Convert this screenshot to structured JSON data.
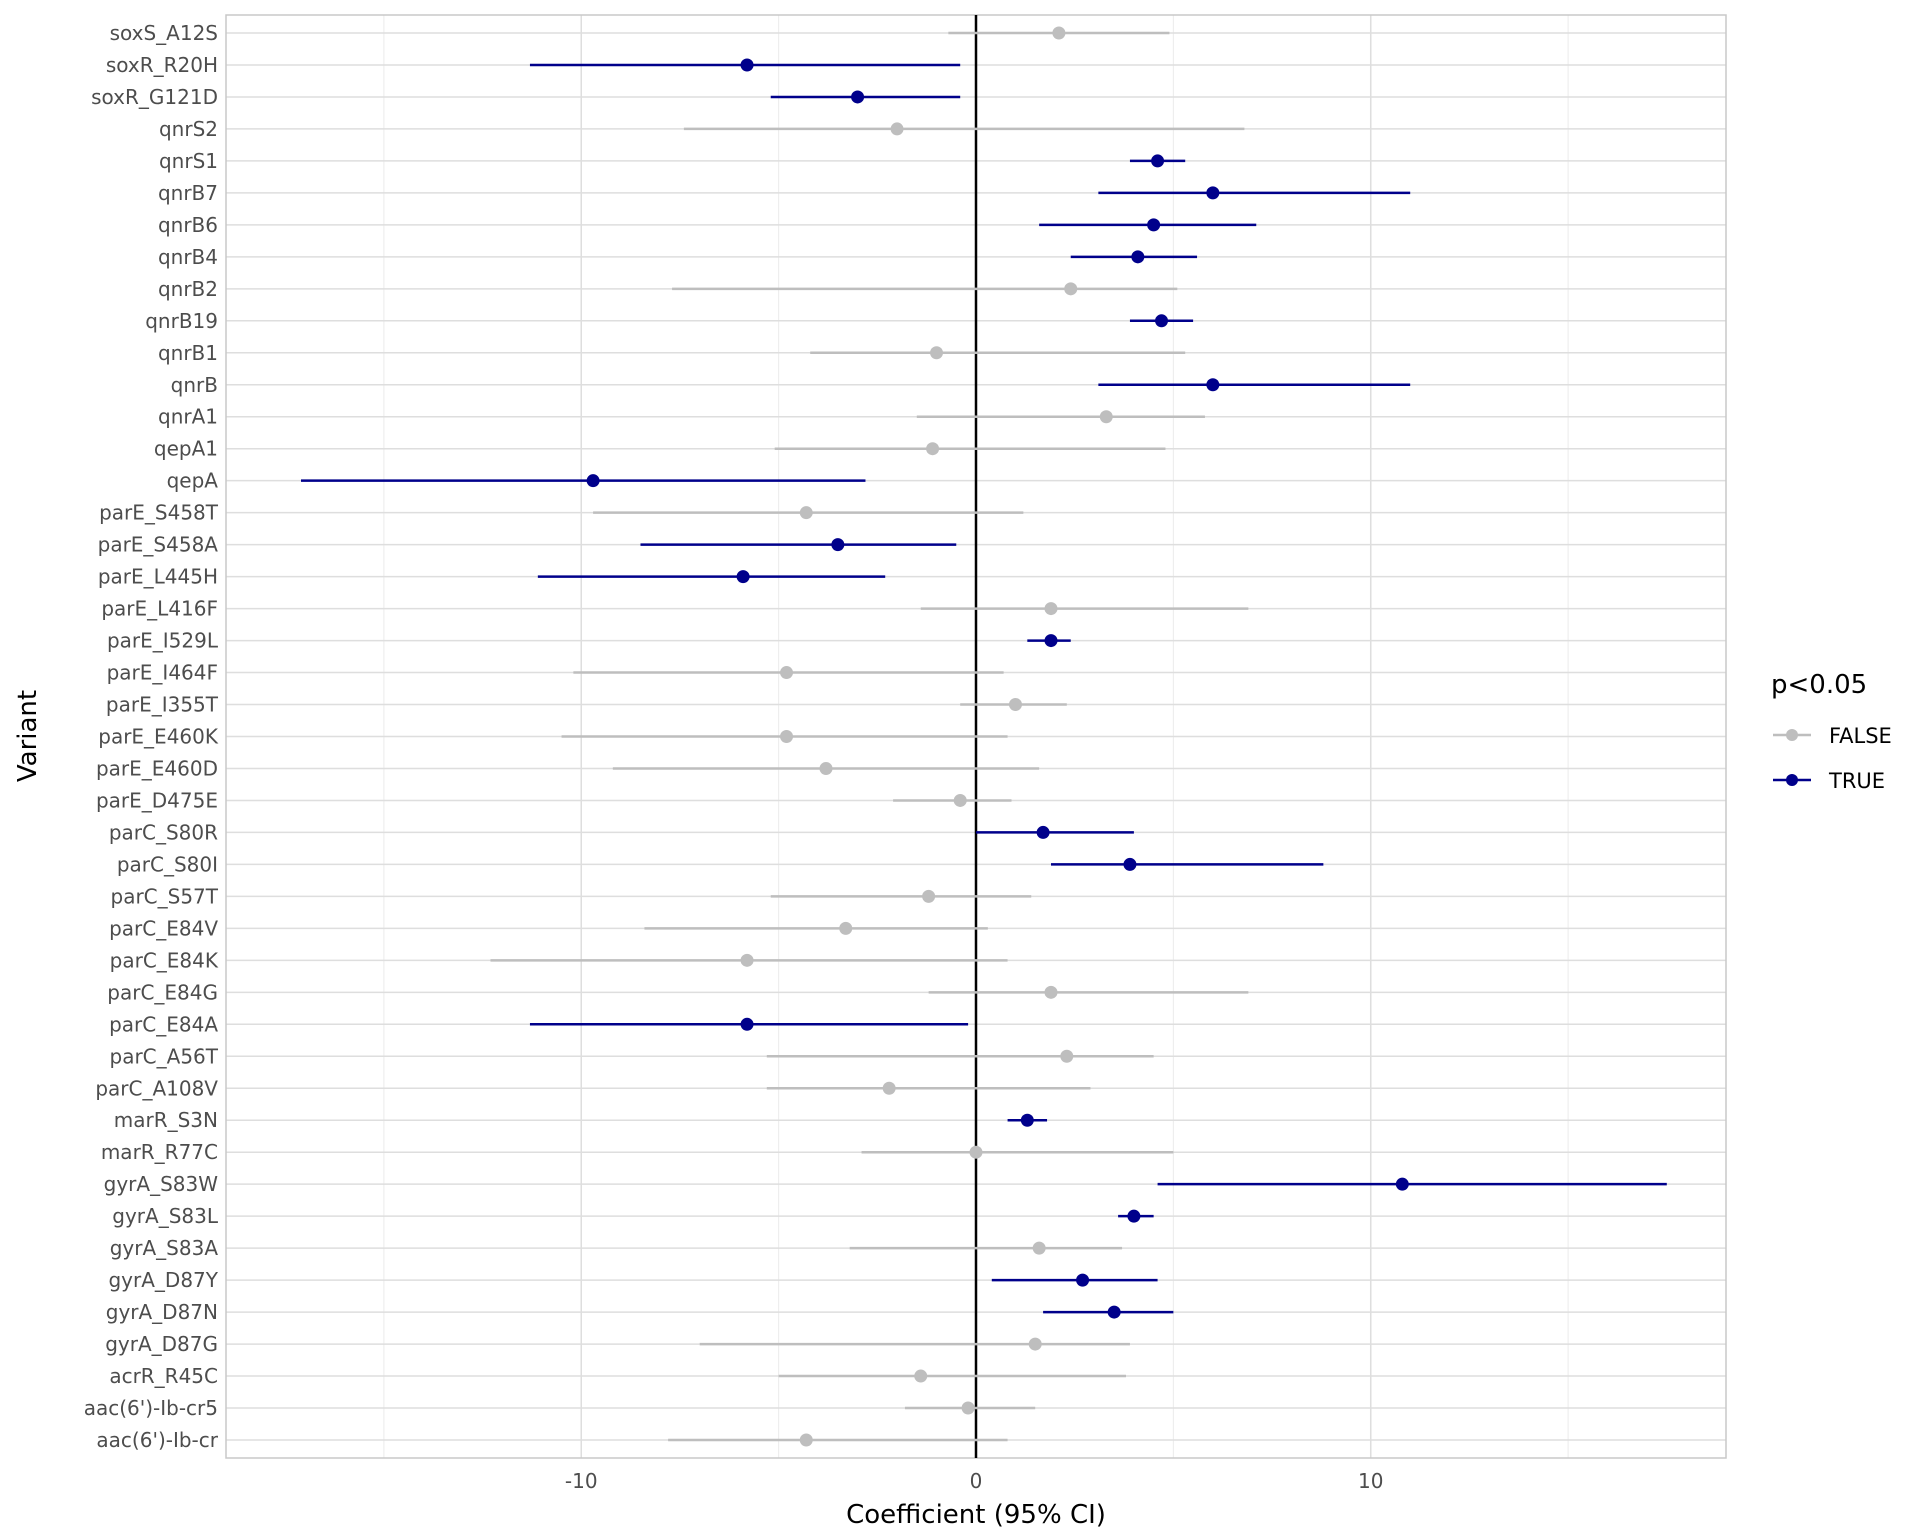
{
  "chart_data": {
    "type": "forest",
    "xlabel": "Coefficient (95% CI)",
    "ylabel": "Variant",
    "xlim": [
      -19,
      19
    ],
    "x_ticks": [
      -10,
      0,
      10
    ],
    "x_tick_labels": [
      "-10",
      "0",
      "10"
    ],
    "reference_line": 0,
    "grid": true,
    "legend": {
      "title": "p<0.05",
      "placement": "right",
      "entries": [
        {
          "label": "FALSE",
          "color": "#bebebe"
        },
        {
          "label": "TRUE",
          "color": "#00008b"
        }
      ]
    },
    "colors": {
      "FALSE": "#bebebe",
      "TRUE": "#00008b"
    },
    "variants": [
      {
        "name": "soxS_A12S",
        "estimate": 2.1,
        "lower": -0.7,
        "upper": 4.9,
        "significant": "FALSE"
      },
      {
        "name": "soxR_R20H",
        "estimate": -5.8,
        "lower": -11.3,
        "upper": -0.4,
        "significant": "TRUE"
      },
      {
        "name": "soxR_G121D",
        "estimate": -3.0,
        "lower": -5.2,
        "upper": -0.4,
        "significant": "TRUE"
      },
      {
        "name": "qnrS2",
        "estimate": -2.0,
        "lower": -7.4,
        "upper": 6.8,
        "significant": "FALSE"
      },
      {
        "name": "qnrS1",
        "estimate": 4.6,
        "lower": 3.9,
        "upper": 5.3,
        "significant": "TRUE"
      },
      {
        "name": "qnrB7",
        "estimate": 6.0,
        "lower": 3.1,
        "upper": 11.0,
        "significant": "TRUE"
      },
      {
        "name": "qnrB6",
        "estimate": 4.5,
        "lower": 1.6,
        "upper": 7.1,
        "significant": "TRUE"
      },
      {
        "name": "qnrB4",
        "estimate": 4.1,
        "lower": 2.4,
        "upper": 5.6,
        "significant": "TRUE"
      },
      {
        "name": "qnrB2",
        "estimate": 2.4,
        "lower": -7.7,
        "upper": 5.1,
        "significant": "FALSE"
      },
      {
        "name": "qnrB19",
        "estimate": 4.7,
        "lower": 3.9,
        "upper": 5.5,
        "significant": "TRUE"
      },
      {
        "name": "qnrB1",
        "estimate": -1.0,
        "lower": -4.2,
        "upper": 5.3,
        "significant": "FALSE"
      },
      {
        "name": "qnrB",
        "estimate": 6.0,
        "lower": 3.1,
        "upper": 11.0,
        "significant": "TRUE"
      },
      {
        "name": "qnrA1",
        "estimate": 3.3,
        "lower": -1.5,
        "upper": 5.8,
        "significant": "FALSE"
      },
      {
        "name": "qepA1",
        "estimate": -1.1,
        "lower": -5.1,
        "upper": 4.8,
        "significant": "FALSE"
      },
      {
        "name": "qepA",
        "estimate": -9.7,
        "lower": -17.1,
        "upper": -2.8,
        "significant": "TRUE"
      },
      {
        "name": "parE_S458T",
        "estimate": -4.3,
        "lower": -9.7,
        "upper": 1.2,
        "significant": "FALSE"
      },
      {
        "name": "parE_S458A",
        "estimate": -3.5,
        "lower": -8.5,
        "upper": -0.5,
        "significant": "TRUE"
      },
      {
        "name": "parE_L445H",
        "estimate": -5.9,
        "lower": -11.1,
        "upper": -2.3,
        "significant": "TRUE"
      },
      {
        "name": "parE_L416F",
        "estimate": 1.9,
        "lower": -1.4,
        "upper": 6.9,
        "significant": "FALSE"
      },
      {
        "name": "parE_I529L",
        "estimate": 1.9,
        "lower": 1.3,
        "upper": 2.4,
        "significant": "TRUE"
      },
      {
        "name": "parE_I464F",
        "estimate": -4.8,
        "lower": -10.2,
        "upper": 0.7,
        "significant": "FALSE"
      },
      {
        "name": "parE_I355T",
        "estimate": 1.0,
        "lower": -0.4,
        "upper": 2.3,
        "significant": "FALSE"
      },
      {
        "name": "parE_E460K",
        "estimate": -4.8,
        "lower": -10.5,
        "upper": 0.8,
        "significant": "FALSE"
      },
      {
        "name": "parE_E460D",
        "estimate": -3.8,
        "lower": -9.2,
        "upper": 1.6,
        "significant": "FALSE"
      },
      {
        "name": "parE_D475E",
        "estimate": -0.4,
        "lower": -2.1,
        "upper": 0.9,
        "significant": "FALSE"
      },
      {
        "name": "parC_S80R",
        "estimate": 1.7,
        "lower": 0.0,
        "upper": 4.0,
        "significant": "TRUE"
      },
      {
        "name": "parC_S80I",
        "estimate": 3.9,
        "lower": 1.9,
        "upper": 8.8,
        "significant": "TRUE"
      },
      {
        "name": "parC_S57T",
        "estimate": -1.2,
        "lower": -5.2,
        "upper": 1.4,
        "significant": "FALSE"
      },
      {
        "name": "parC_E84V",
        "estimate": -3.3,
        "lower": -8.4,
        "upper": 0.3,
        "significant": "FALSE"
      },
      {
        "name": "parC_E84K",
        "estimate": -5.8,
        "lower": -12.3,
        "upper": 0.8,
        "significant": "FALSE"
      },
      {
        "name": "parC_E84G",
        "estimate": 1.9,
        "lower": -1.2,
        "upper": 6.9,
        "significant": "FALSE"
      },
      {
        "name": "parC_E84A",
        "estimate": -5.8,
        "lower": -11.3,
        "upper": -0.2,
        "significant": "TRUE"
      },
      {
        "name": "parC_A56T",
        "estimate": 2.3,
        "lower": -5.3,
        "upper": 4.5,
        "significant": "FALSE"
      },
      {
        "name": "parC_A108V",
        "estimate": -2.2,
        "lower": -5.3,
        "upper": 2.9,
        "significant": "FALSE"
      },
      {
        "name": "marR_S3N",
        "estimate": 1.3,
        "lower": 0.8,
        "upper": 1.8,
        "significant": "TRUE"
      },
      {
        "name": "marR_R77C",
        "estimate": 0.0,
        "lower": -2.9,
        "upper": 5.0,
        "significant": "FALSE"
      },
      {
        "name": "gyrA_S83W",
        "estimate": 10.8,
        "lower": 4.6,
        "upper": 17.5,
        "significant": "TRUE"
      },
      {
        "name": "gyrA_S83L",
        "estimate": 4.0,
        "lower": 3.6,
        "upper": 4.5,
        "significant": "TRUE"
      },
      {
        "name": "gyrA_S83A",
        "estimate": 1.6,
        "lower": -3.2,
        "upper": 3.7,
        "significant": "FALSE"
      },
      {
        "name": "gyrA_D87Y",
        "estimate": 2.7,
        "lower": 0.4,
        "upper": 4.6,
        "significant": "TRUE"
      },
      {
        "name": "gyrA_D87N",
        "estimate": 3.5,
        "lower": 1.7,
        "upper": 5.0,
        "significant": "TRUE"
      },
      {
        "name": "gyrA_D87G",
        "estimate": 1.5,
        "lower": -7.0,
        "upper": 3.9,
        "significant": "FALSE"
      },
      {
        "name": "acrR_R45C",
        "estimate": -1.4,
        "lower": -5.0,
        "upper": 3.8,
        "significant": "FALSE"
      },
      {
        "name": "aac(6')-Ib-cr5",
        "estimate": -0.2,
        "lower": -1.8,
        "upper": 1.5,
        "significant": "FALSE"
      },
      {
        "name": "aac(6')-Ib-cr",
        "estimate": -4.3,
        "lower": -7.8,
        "upper": 0.8,
        "significant": "FALSE"
      }
    ]
  }
}
